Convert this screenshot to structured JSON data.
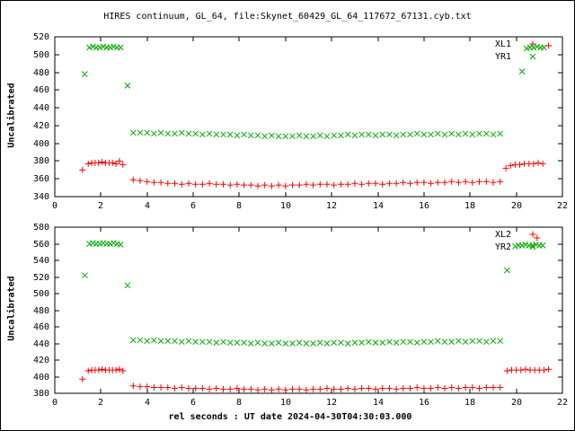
{
  "title": "HIRES continuum, GL_64, file:Skynet_60429_GL_64_117672_67131.cyb.txt",
  "xlabel": "rel seconds : UT date 2024-04-30T04:30:03.000",
  "ylabel_top": "Uncalibrated",
  "ylabel_bottom": "Uncalibrated",
  "colors": {
    "series_red": "#ff0000",
    "series_green": "#00aa00",
    "text": "#000000",
    "background": "#ffffff",
    "border": "#000000"
  },
  "chart_data": [
    {
      "type": "scatter",
      "position": "top",
      "xlim": [
        0,
        22
      ],
      "xtick_step": 2,
      "ylim": [
        340,
        520
      ],
      "ytick_step": 20,
      "grid": false,
      "legend_position": "top-right",
      "series": [
        {
          "name": "XL1",
          "marker": "plus",
          "color": "#ff0000",
          "points": [
            [
              1.2,
              370
            ],
            [
              1.45,
              377
            ],
            [
              1.6,
              378
            ],
            [
              1.75,
              378
            ],
            [
              1.9,
              378
            ],
            [
              2.05,
              379
            ],
            [
              2.2,
              378
            ],
            [
              2.35,
              378
            ],
            [
              2.5,
              378
            ],
            [
              2.65,
              377
            ],
            [
              2.8,
              380
            ],
            [
              2.95,
              376
            ],
            [
              19.55,
              372
            ],
            [
              19.75,
              375
            ],
            [
              19.95,
              376
            ],
            [
              20.15,
              376
            ],
            [
              20.35,
              377
            ],
            [
              20.55,
              377
            ],
            [
              20.75,
              377
            ],
            [
              20.95,
              378
            ],
            [
              21.15,
              377
            ],
            [
              21.4,
              510
            ]
          ],
          "run": {
            "x0": 3.4,
            "dx": 0.3,
            "y": [
              359,
              358,
              357,
              356,
              356,
              355,
              355,
              354,
              355,
              354,
              354,
              355,
              354,
              354,
              353,
              354,
              353,
              353,
              352,
              353,
              352,
              353,
              352,
              353,
              353,
              354,
              353,
              354,
              354,
              353,
              354,
              354,
              355,
              354,
              355,
              355,
              354,
              355,
              355,
              356,
              355,
              356,
              356,
              355,
              356,
              356,
              357,
              356,
              357,
              356,
              357,
              357,
              356,
              357
            ]
          }
        },
        {
          "name": "YR1",
          "marker": "cross",
          "color": "#00aa00",
          "points": [
            [
              1.3,
              478
            ],
            [
              1.5,
              508
            ],
            [
              1.65,
              509
            ],
            [
              1.8,
              508
            ],
            [
              1.95,
              508
            ],
            [
              2.1,
              509
            ],
            [
              2.25,
              508
            ],
            [
              2.4,
              508
            ],
            [
              2.55,
              509
            ],
            [
              2.7,
              508
            ],
            [
              2.85,
              508
            ],
            [
              3.15,
              465
            ],
            [
              20.25,
              481
            ],
            [
              20.45,
              507
            ],
            [
              20.6,
              508
            ],
            [
              20.75,
              508
            ],
            [
              20.9,
              509
            ],
            [
              21.05,
              508
            ],
            [
              21.2,
              508
            ]
          ],
          "run": {
            "x0": 3.4,
            "dx": 0.3,
            "y": [
              412,
              412,
              412,
              411,
              412,
              411,
              411,
              412,
              411,
              411,
              410,
              411,
              410,
              410,
              410,
              409,
              410,
              409,
              409,
              408,
              409,
              408,
              408,
              408,
              409,
              408,
              408,
              409,
              408,
              409,
              409,
              410,
              409,
              410,
              410,
              409,
              410,
              410,
              409,
              410,
              410,
              411,
              410,
              410,
              411,
              410,
              411,
              410,
              411,
              410,
              411,
              411,
              410,
              411
            ]
          }
        }
      ]
    },
    {
      "type": "scatter",
      "position": "bottom",
      "xlim": [
        0,
        22
      ],
      "xtick_step": 2,
      "ylim": [
        380,
        580
      ],
      "ytick_step": 20,
      "grid": false,
      "legend_position": "top-right",
      "series": [
        {
          "name": "XL2",
          "marker": "plus",
          "color": "#ff0000",
          "points": [
            [
              1.2,
              397
            ],
            [
              1.45,
              407
            ],
            [
              1.6,
              408
            ],
            [
              1.75,
              408
            ],
            [
              1.9,
              408
            ],
            [
              2.05,
              409
            ],
            [
              2.2,
              408
            ],
            [
              2.35,
              408
            ],
            [
              2.5,
              408
            ],
            [
              2.65,
              408
            ],
            [
              2.8,
              409
            ],
            [
              2.95,
              407
            ],
            [
              19.6,
              407
            ],
            [
              19.8,
              408
            ],
            [
              20.0,
              408
            ],
            [
              20.2,
              408
            ],
            [
              20.4,
              409
            ],
            [
              20.6,
              408
            ],
            [
              20.8,
              408
            ],
            [
              21.0,
              408
            ],
            [
              21.2,
              408
            ],
            [
              21.4,
              409
            ],
            [
              20.9,
              567
            ]
          ],
          "run": {
            "x0": 3.4,
            "dx": 0.3,
            "y": [
              389,
              388,
              388,
              387,
              387,
              387,
              386,
              387,
              386,
              386,
              386,
              385,
              386,
              385,
              385,
              386,
              385,
              385,
              384,
              385,
              384,
              385,
              384,
              385,
              385,
              384,
              385,
              385,
              386,
              385,
              385,
              386,
              385,
              386,
              386,
              385,
              386,
              386,
              385,
              386,
              386,
              387,
              386,
              386,
              387,
              386,
              387,
              386,
              387,
              387,
              386,
              387,
              387,
              387
            ]
          }
        },
        {
          "name": "YR2",
          "marker": "cross",
          "color": "#00aa00",
          "points": [
            [
              1.3,
              522
            ],
            [
              1.5,
              560
            ],
            [
              1.65,
              561
            ],
            [
              1.8,
              560
            ],
            [
              1.95,
              560
            ],
            [
              2.1,
              561
            ],
            [
              2.25,
              560
            ],
            [
              2.4,
              560
            ],
            [
              2.55,
              561
            ],
            [
              2.7,
              560
            ],
            [
              2.85,
              559
            ],
            [
              3.15,
              510
            ],
            [
              19.6,
              528
            ],
            [
              19.95,
              557
            ],
            [
              20.1,
              558
            ],
            [
              20.25,
              558
            ],
            [
              20.4,
              559
            ],
            [
              20.55,
              558
            ],
            [
              20.7,
              558
            ],
            [
              20.85,
              559
            ],
            [
              21.0,
              558
            ],
            [
              21.15,
              558
            ]
          ],
          "run": {
            "x0": 3.4,
            "dx": 0.3,
            "y": [
              444,
              444,
              443,
              444,
              443,
              443,
              443,
              442,
              443,
              442,
              442,
              442,
              441,
              442,
              441,
              441,
              441,
              440,
              441,
              440,
              440,
              441,
              440,
              440,
              441,
              440,
              440,
              441,
              440,
              441,
              441,
              440,
              441,
              441,
              442,
              441,
              441,
              442,
              441,
              442,
              442,
              441,
              442,
              442,
              443,
              442,
              442,
              443,
              442,
              443,
              443,
              442,
              443,
              443
            ]
          }
        }
      ]
    }
  ]
}
